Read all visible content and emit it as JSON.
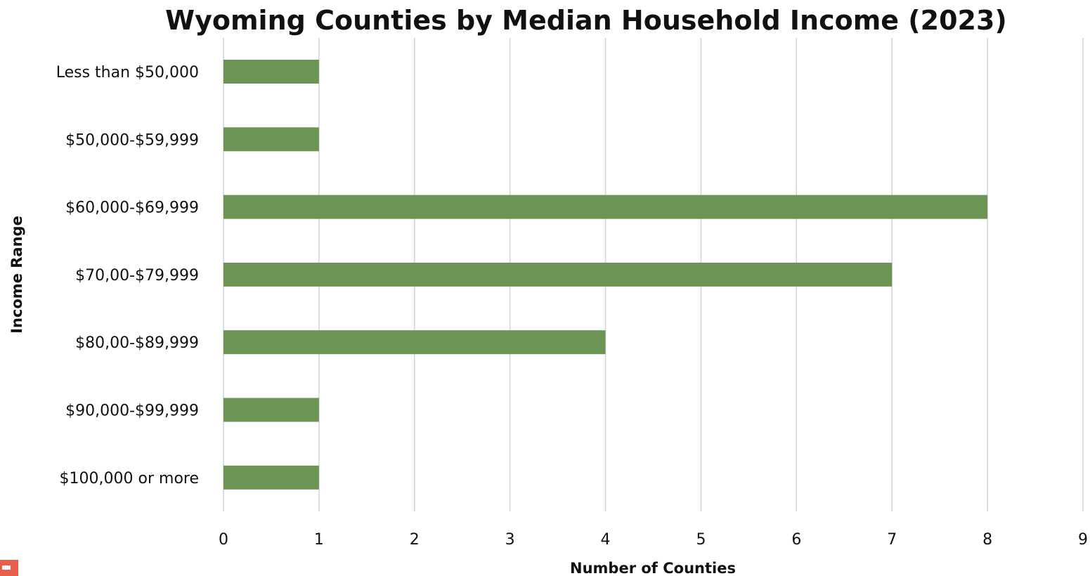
{
  "chart_data": {
    "type": "bar",
    "orientation": "horizontal",
    "title": "Wyoming Counties by Median Household Income (2023)",
    "xlabel": "Number of Counties",
    "ylabel": "Income Range",
    "categories": [
      "Less than $50,000",
      "$50,000-$59,999",
      "$60,000-$69,999",
      "$70,00-$79,999",
      "$80,00-$89,999",
      "$90,000-$99,999",
      "$100,000 or more"
    ],
    "values": [
      1,
      1,
      8,
      7,
      4,
      1,
      1
    ],
    "xlim": [
      0,
      9
    ],
    "xticks": [
      "0",
      "1",
      "2",
      "3",
      "4",
      "5",
      "6",
      "7",
      "8",
      "9"
    ],
    "grid": "vertical",
    "bar_color": "#6b9455",
    "logo_color": "#e8604c"
  }
}
